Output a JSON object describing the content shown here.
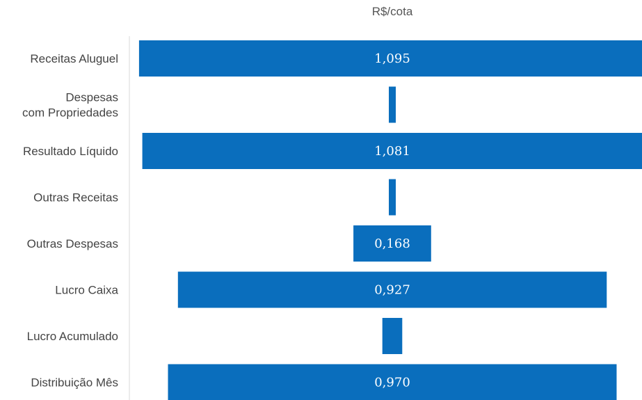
{
  "chart_data": {
    "type": "bar",
    "orientation": "horizontal",
    "variant": "centered-funnel",
    "title": "R$/cota",
    "xlabel": "",
    "ylabel": "",
    "bar_color": "#0a6ebd",
    "label_color": "#ffffff",
    "categories": [
      [
        "Receitas Aluguel"
      ],
      [
        "Despesas",
        "com Propriedades"
      ],
      [
        "Resultado Líquido"
      ],
      [
        "Outras Receitas"
      ],
      [
        "Outras Despesas"
      ],
      [
        "Lucro Caixa"
      ],
      [
        "Lucro Acumulado"
      ],
      [
        "Distribuição Mês"
      ]
    ],
    "values": [
      1.095,
      0.014,
      1.081,
      0.014,
      0.168,
      0.927,
      0.043,
      0.97
    ],
    "data_labels": [
      "1,095",
      "",
      "1,081",
      "",
      "0,168",
      "0,927",
      "",
      "0,970"
    ]
  }
}
